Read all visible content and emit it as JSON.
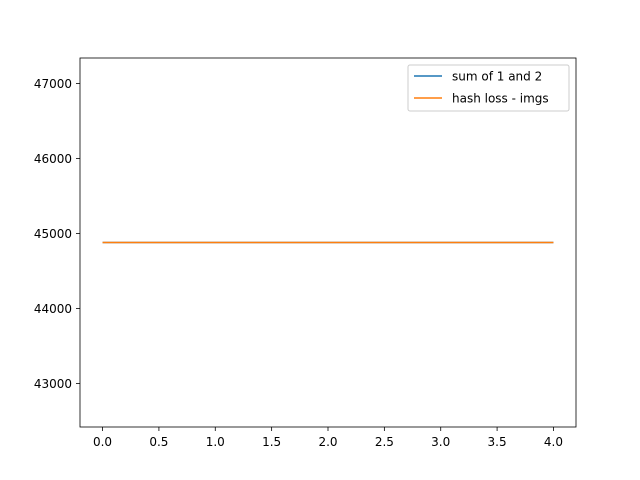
{
  "chart_data": {
    "type": "line",
    "x": [
      0,
      1,
      2,
      3,
      4
    ],
    "series": [
      {
        "name": "sum of 1 and 2",
        "color": "#1f77b4",
        "values": [
          44880,
          44880,
          44880,
          44880,
          44880
        ]
      },
      {
        "name": "hash loss - imgs",
        "color": "#ff7f0e",
        "values": [
          44880,
          44880,
          44880,
          44880,
          44880
        ]
      }
    ],
    "xlim": [
      -0.2,
      4.2
    ],
    "ylim": [
      42420,
      47340
    ],
    "xticks": [
      0.0,
      0.5,
      1.0,
      1.5,
      2.0,
      2.5,
      3.0,
      3.5,
      4.0
    ],
    "xtick_labels": [
      "0.0",
      "0.5",
      "1.0",
      "1.5",
      "2.0",
      "2.5",
      "3.0",
      "3.5",
      "4.0"
    ],
    "yticks": [
      43000,
      44000,
      45000,
      46000,
      47000
    ],
    "ytick_labels": [
      "43000",
      "44000",
      "45000",
      "46000",
      "47000"
    ],
    "title": "",
    "xlabel": "",
    "ylabel": "",
    "grid": false,
    "legend_position": "top-right"
  }
}
